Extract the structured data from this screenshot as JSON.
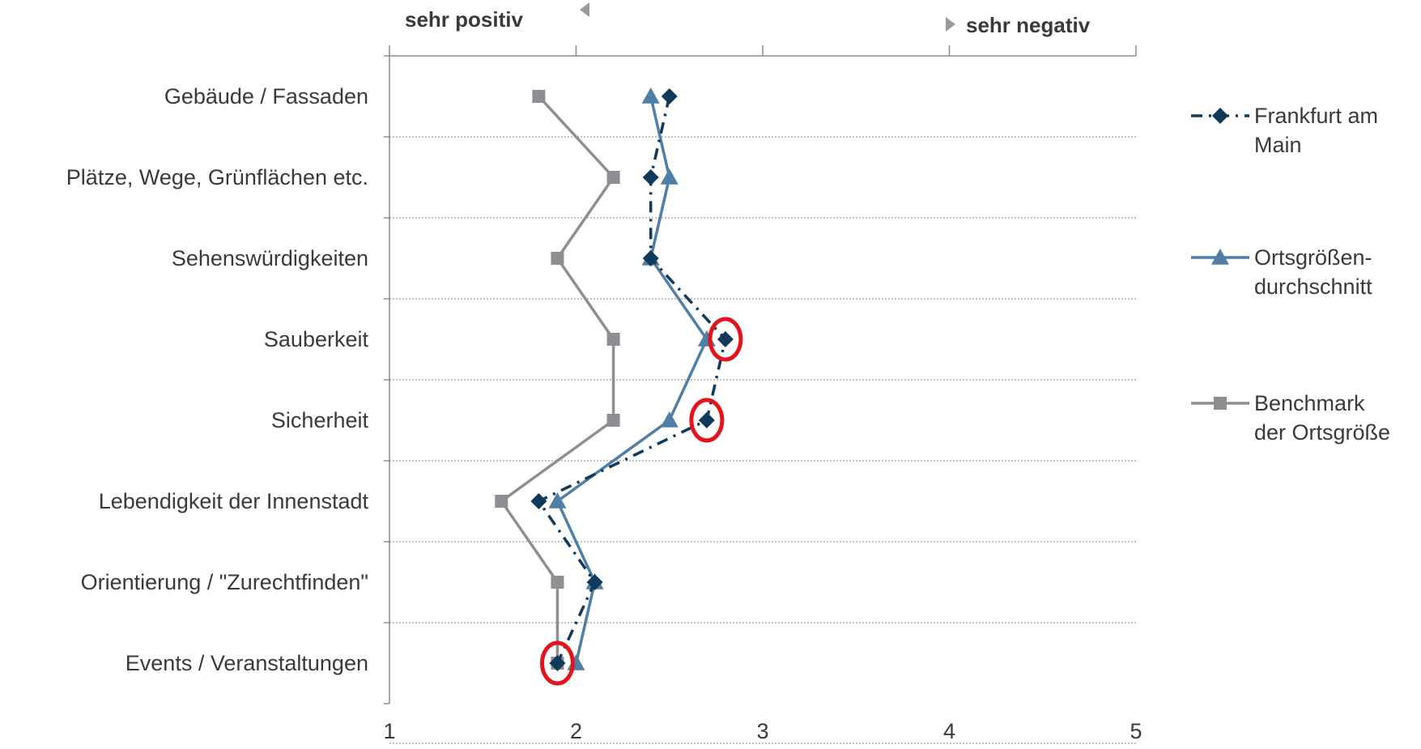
{
  "direction": {
    "left": "sehr positiv",
    "right": "sehr negativ"
  },
  "colors": {
    "frankfurt": "#0f3a5c",
    "ortsgroesse": "#4f7fa6",
    "benchmark": "#8e8e93",
    "highlight": "#e3141b",
    "axis": "#8c8c8c",
    "text": "#3a3a3a"
  },
  "legend": [
    {
      "lines": [
        "Frankfurt am",
        "Main"
      ],
      "marker": "diamond",
      "style": "dashdot",
      "color": "#0f3a5c"
    },
    {
      "lines": [
        "Ortsgrößen-",
        "durchschnitt"
      ],
      "marker": "triangle",
      "style": "solid",
      "color": "#4f7fa6"
    },
    {
      "lines": [
        "Benchmark",
        "der Ortsgröße"
      ],
      "marker": "square",
      "style": "solid",
      "color": "#8e8e93"
    }
  ],
  "chart_data": {
    "type": "line",
    "orientation": "horizontal",
    "categories": [
      "Gebäude / Fassaden",
      "Plätze, Wege, Grünflächen etc.",
      "Sehenswürdigkeiten",
      "Sauberkeit",
      "Sicherheit",
      "Lebendigkeit der Innenstadt",
      "Orientierung / \"Zurechtfinden\"",
      "Events / Veranstaltungen"
    ],
    "series": [
      {
        "name": "Frankfurt am Main",
        "values": [
          2.5,
          2.4,
          2.4,
          2.8,
          2.7,
          1.8,
          2.1,
          1.9
        ]
      },
      {
        "name": "Ortsgrößendurchschnitt",
        "values": [
          2.4,
          2.5,
          2.4,
          2.7,
          2.5,
          1.9,
          2.1,
          2.0
        ]
      },
      {
        "name": "Benchmark der Ortsgröße",
        "values": [
          1.8,
          2.2,
          1.9,
          2.2,
          2.2,
          1.6,
          1.9,
          1.9
        ]
      }
    ],
    "xlim": [
      1,
      5
    ],
    "xticks": [
      "1",
      "2",
      "3",
      "4",
      "5"
    ],
    "grid": true,
    "legend_position": "right",
    "highlighted_points": [
      {
        "series": "Frankfurt am Main",
        "category": "Sauberkeit"
      },
      {
        "series": "Frankfurt am Main",
        "category": "Sicherheit"
      },
      {
        "series": "Frankfurt am Main",
        "category": "Events / Veranstaltungen"
      }
    ]
  }
}
